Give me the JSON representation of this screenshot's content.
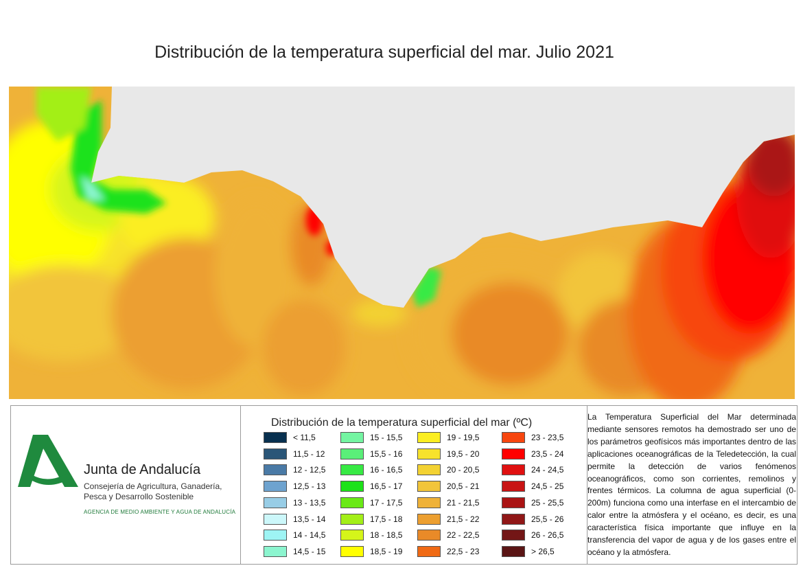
{
  "title": "Distribución de la temperatura superficial del mar. Julio 2021",
  "colors": {
    "land": "#e8e8e8"
  },
  "organization": {
    "name": "Junta de Andalucía",
    "subtitle_line1": "Consejería de Agricultura, Ganadería,",
    "subtitle_line2": "Pesca y Desarrollo Sostenible",
    "agency": "AGENCIA DE MEDIO AMBIENTE Y AGUA DE ANDALUCÍA",
    "logo_color": "#1f8a3e"
  },
  "legend": {
    "title": "Distribución de la temperatura superficial del mar (ºC)",
    "items": [
      {
        "label": "< 11,5",
        "color": "#08304f"
      },
      {
        "label": "11,5 - 12",
        "color": "#2a5678"
      },
      {
        "label": "12 - 12,5",
        "color": "#4a7aa6"
      },
      {
        "label": "12,5 - 13",
        "color": "#6ea3cf"
      },
      {
        "label": "13 - 13,5",
        "color": "#98cde6"
      },
      {
        "label": "13,5 - 14",
        "color": "#ccf7fa"
      },
      {
        "label": "14 - 14,5",
        "color": "#9ef4f4"
      },
      {
        "label": "14,5 - 15",
        "color": "#8cf5cf"
      },
      {
        "label": "15 - 15,5",
        "color": "#74f5a2"
      },
      {
        "label": "15,5 - 16",
        "color": "#5aef79"
      },
      {
        "label": "16 - 16,5",
        "color": "#37ea44"
      },
      {
        "label": "16,5 - 17",
        "color": "#1de21a"
      },
      {
        "label": "17 - 17,5",
        "color": "#6ae916"
      },
      {
        "label": "17,5 - 18",
        "color": "#a3ef18"
      },
      {
        "label": "18 - 18,5",
        "color": "#d5f51a"
      },
      {
        "label": "18,5 - 19",
        "color": "#ffff00"
      },
      {
        "label": "19 - 19,5",
        "color": "#fbee22"
      },
      {
        "label": "19,5 - 20",
        "color": "#f7e22c"
      },
      {
        "label": "20 - 20,5",
        "color": "#f3d232"
      },
      {
        "label": "20,5 - 21",
        "color": "#f2c53a"
      },
      {
        "label": "21 - 21,5",
        "color": "#efb238"
      },
      {
        "label": "21,5 - 22",
        "color": "#ec9f30"
      },
      {
        "label": "22 - 22,5",
        "color": "#e98a28"
      },
      {
        "label": "22,5 - 23",
        "color": "#f06a14"
      },
      {
        "label": "23 - 23,5",
        "color": "#f7460f"
      },
      {
        "label": "23,5 - 24",
        "color": "#ff0000"
      },
      {
        "label": "24 - 24,5",
        "color": "#e01010"
      },
      {
        "label": "24,5 - 25",
        "color": "#c81414"
      },
      {
        "label": "25 - 25,5",
        "color": "#aa1414"
      },
      {
        "label": "25,5 - 26",
        "color": "#901717"
      },
      {
        "label": "26 - 26,5",
        "color": "#731616"
      },
      {
        "label": "> 26,5",
        "color": "#5a1515"
      }
    ]
  },
  "description": "La Temperatura Superficial del Mar determinada mediante sensores remotos ha demostrado ser uno de los parámetros geofísicos más importantes dentro de las aplicaciones oceanográficas de la Teledetección, la cual permite la detección de varios fenómenos oceanográficos, como son corrientes, remolinos y frentes térmicos. La columna de agua superficial (0-200m) funciona como una interfase en el intercambio de calor entre la atmósfera y el océano, es decir, es una característica física importante que influye en la transferencia del vapor de agua y de los gases entre el océano y la atmósfera."
}
